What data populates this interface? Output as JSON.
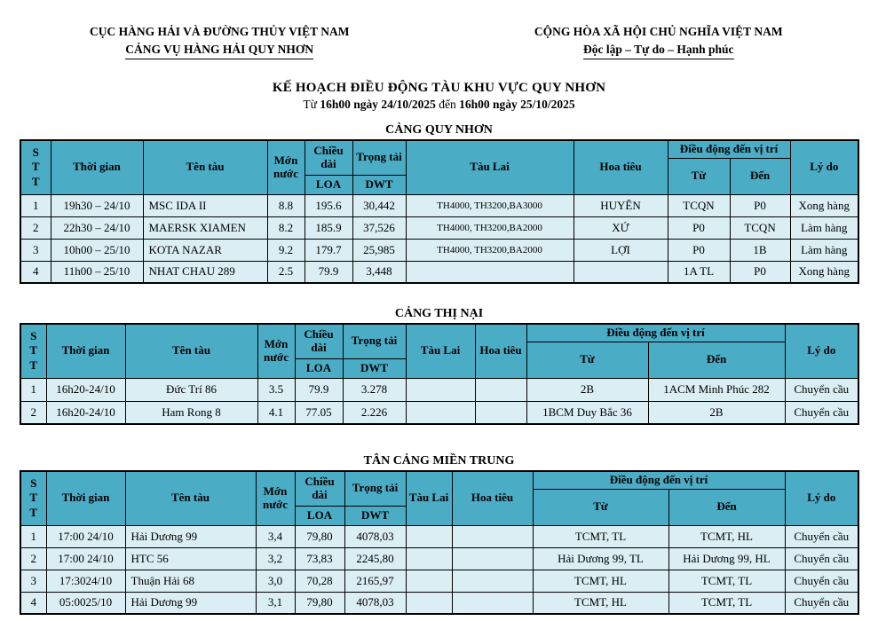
{
  "page": {
    "org_left_line1": "CỤC HÀNG HẢI VÀ ĐƯỜNG THỦY VIỆT NAM",
    "org_left_line2": "CẢNG VỤ HÀNG HẢI QUY NHƠN",
    "org_right_line1": "CỘNG HÒA XÃ HỘI CHỦ NGHĨA VIỆT NAM",
    "org_right_line2": "Độc lập – Tự do – Hạnh phúc",
    "title": "KẾ HOẠCH ĐIỀU ĐỘNG TÀU KHU VỰC QUY NHƠN",
    "subtitle": {
      "t1": "Từ ",
      "b1": "16h00 ngày 24/10/2025",
      "t2": " đến ",
      "b2": "16h00 ngày 25/10/2025"
    }
  },
  "hdr": {
    "stt": "STT",
    "time": "Thời gian",
    "ship": "Tên tàu",
    "draft": "Mớn nước",
    "length": "Chiều dài",
    "loa": "LOA",
    "tonnage": "Trọng tải",
    "dwt": "DWT",
    "tug": "Tàu Lai",
    "pilot": "Hoa tiêu",
    "move": "Điều động đến vị trí",
    "from": "Từ",
    "to": "Đến",
    "reason": "Lý do"
  },
  "tables": [
    {
      "title": "CẢNG QUY NHƠN",
      "rows": [
        [
          "1",
          "19h30 – 24/10",
          "MSC IDA II",
          "8.8",
          "195.6",
          "30,442",
          "TH4000, TH3200,BA3000",
          "HUYÊN",
          "TCQN",
          "P0",
          "Xong hàng"
        ],
        [
          "2",
          "22h30 – 24/10",
          "MAERSK XIAMEN",
          "8.2",
          "185.9",
          "37,526",
          "TH4000, TH3200,BA2000",
          "XỨ",
          "P0",
          "TCQN",
          "Làm hàng"
        ],
        [
          "3",
          "10h00 – 25/10",
          "KOTA NAZAR",
          "9.2",
          "179.7",
          "25,985",
          "TH4000, TH3200,BA2000",
          "LỢI",
          "P0",
          "1B",
          "Làm hàng"
        ],
        [
          "4",
          "11h00 – 25/10",
          "NHAT CHAU 289",
          "2.5",
          "79.9",
          "3,448",
          "",
          "",
          "1A TL",
          "P0",
          "Xong hàng"
        ]
      ]
    },
    {
      "title": "CẢNG THỊ NẠI",
      "rows": [
        [
          "1",
          "16h20-24/10",
          "Đức Trí 86",
          "3.5",
          "79.9",
          "3.278",
          "",
          "",
          "2B",
          "1ACM Minh Phúc 282",
          "Chuyển cầu"
        ],
        [
          "2",
          "16h20-24/10",
          "Ham Rong 8",
          "4.1",
          "77.05",
          "2.226",
          "",
          "",
          "1BCM Duy Bắc 36",
          "2B",
          "Chuyển cầu"
        ]
      ]
    },
    {
      "title": "TÂN CẢNG MIỀN TRUNG",
      "rows": [
        [
          "1",
          "17:00 24/10",
          "Hải Dương 99",
          "3,4",
          "79,80",
          "4078,03",
          "",
          "",
          "TCMT, TL",
          "TCMT, HL",
          "Chuyển cầu"
        ],
        [
          "2",
          "17:00 24/10",
          "HTC 56",
          "3,2",
          "73,83",
          "2245,80",
          "",
          "",
          "Hải Dương 99, TL",
          "Hải Dương 99, HL",
          "Chuyển cầu"
        ],
        [
          "3",
          "17:3024/10",
          "Thuận Hải 68",
          "3,0",
          "70,28",
          "2165,97",
          "",
          "",
          "TCMT, HL",
          "TCMT, TL",
          "Chuyển cầu"
        ],
        [
          "4",
          "05:0025/10",
          "Hải Dương 99",
          "3,1",
          "79,80",
          "4078,03",
          "",
          "",
          "TCMT, HL",
          "TCMT, TL",
          "Chuyển cầu"
        ]
      ]
    }
  ],
  "colors": {
    "header_bg": "#4BACC6",
    "row_bg": "#DAEEF3",
    "border": "#000000",
    "text": "#000000"
  }
}
